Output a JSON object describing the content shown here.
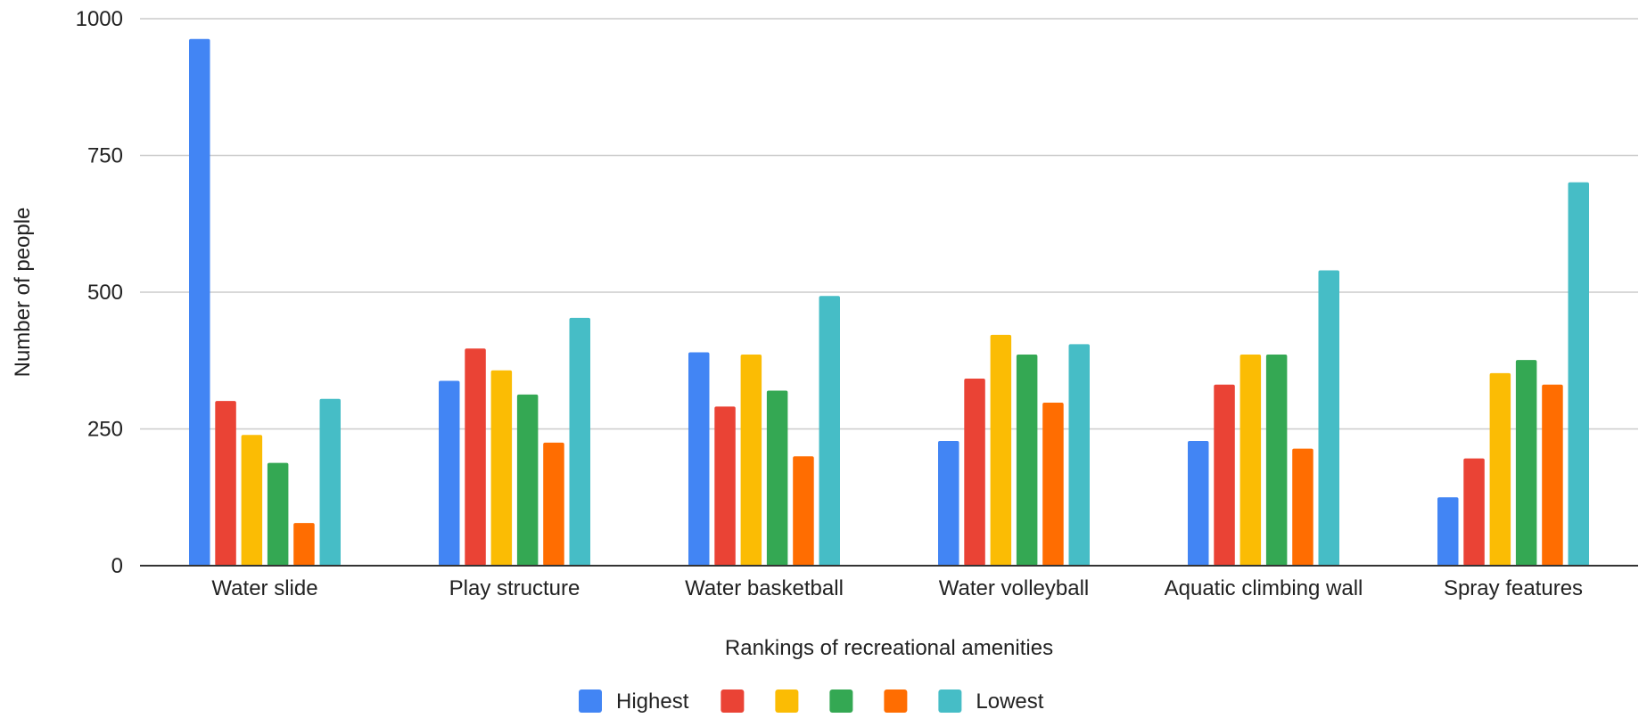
{
  "chart_data": {
    "type": "bar",
    "title": "",
    "xlabel": "Rankings of recreational amenities",
    "ylabel": "Number of people",
    "ylim": [
      0,
      1000
    ],
    "yticks": [
      "0",
      "250",
      "500",
      "750",
      "1000"
    ],
    "grid": true,
    "legend_position": "bottom",
    "categories": [
      "Water slide",
      "Play structure",
      "Water basketball",
      "Water volleyball",
      "Aquatic climbing wall",
      "Spray features"
    ],
    "series": [
      {
        "name": "Highest",
        "color": "#4285F4",
        "values": [
          963,
          338,
          390,
          228,
          228,
          125
        ]
      },
      {
        "name": "",
        "color": "#EA4335",
        "values": [
          301,
          397,
          291,
          342,
          331,
          196
        ]
      },
      {
        "name": "",
        "color": "#FBBC04",
        "values": [
          239,
          357,
          386,
          422,
          386,
          352
        ]
      },
      {
        "name": "",
        "color": "#34A853",
        "values": [
          188,
          313,
          320,
          386,
          386,
          376
        ]
      },
      {
        "name": "",
        "color": "#FF6D01",
        "values": [
          78,
          225,
          200,
          298,
          214,
          331
        ]
      },
      {
        "name": "Lowest",
        "color": "#46BDC6",
        "values": [
          305,
          453,
          493,
          405,
          540,
          701
        ]
      }
    ]
  }
}
